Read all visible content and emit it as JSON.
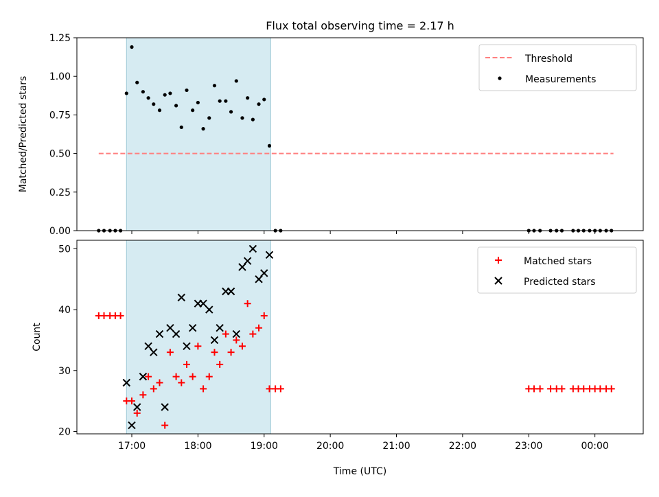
{
  "chart_data": [
    {
      "type": "scatter",
      "title": "Flux total observing time = 2.17 h",
      "xlabel": "",
      "ylabel": "Matched/Predicted stars",
      "xlim_hours": [
        16.17,
        24.73
      ],
      "ylim": [
        0,
        1.25
      ],
      "yticks": [
        0.0,
        0.25,
        0.5,
        0.75,
        1.0,
        1.25
      ],
      "ytick_labels": [
        "0.00",
        "0.25",
        "0.50",
        "0.75",
        "1.00",
        "1.25"
      ],
      "shaded_span_hours": [
        16.92,
        19.1
      ],
      "legend": {
        "position": "top-right",
        "entries": [
          "Threshold",
          "Measurements"
        ]
      },
      "threshold": {
        "name": "Threshold",
        "x_hours": [
          16.5,
          24.28
        ],
        "y": 0.5,
        "color": "#ff7f7f"
      },
      "series": [
        {
          "name": "Measurements",
          "color": "#000000",
          "x_hours": [
            16.5,
            16.58,
            16.67,
            16.75,
            16.83,
            16.92,
            17.0,
            17.08,
            17.17,
            17.25,
            17.33,
            17.42,
            17.5,
            17.58,
            17.67,
            17.75,
            17.83,
            17.92,
            18.0,
            18.08,
            18.17,
            18.25,
            18.33,
            18.42,
            18.5,
            18.58,
            18.67,
            18.75,
            18.83,
            18.92,
            19.0,
            19.08,
            19.17,
            19.25,
            23.0,
            23.08,
            23.17,
            23.33,
            23.42,
            23.5,
            23.67,
            23.75,
            23.83,
            23.92,
            24.0,
            24.08,
            24.17,
            24.25
          ],
          "y": [
            0,
            0,
            0,
            0,
            0,
            0.89,
            1.19,
            0.96,
            0.9,
            0.86,
            0.82,
            0.78,
            0.88,
            0.89,
            0.81,
            0.67,
            0.91,
            0.78,
            0.83,
            0.66,
            0.73,
            0.94,
            0.84,
            0.84,
            0.77,
            0.97,
            0.73,
            0.86,
            0.72,
            0.82,
            0.85,
            0.55,
            0,
            0,
            0,
            0,
            0,
            0,
            0,
            0,
            0,
            0,
            0,
            0,
            0,
            0,
            0,
            0
          ]
        }
      ]
    },
    {
      "type": "scatter",
      "title": "",
      "xlabel": "Time (UTC)",
      "ylabel": "Count",
      "xlim_hours": [
        16.17,
        24.73
      ],
      "ylim": [
        19.6,
        51.4
      ],
      "yticks": [
        20,
        30,
        40,
        50
      ],
      "ytick_labels": [
        "20",
        "30",
        "40",
        "50"
      ],
      "xticks_hours": [
        17,
        18,
        19,
        20,
        21,
        22,
        23,
        24
      ],
      "xtick_labels": [
        "17:00",
        "18:00",
        "19:00",
        "20:00",
        "21:00",
        "22:00",
        "23:00",
        "00:00"
      ],
      "shaded_span_hours": [
        16.92,
        19.1
      ],
      "legend": {
        "position": "top-right",
        "entries": [
          "Matched stars",
          "Predicted stars"
        ]
      },
      "series": [
        {
          "name": "Matched stars",
          "marker": "+",
          "color": "#ff0000",
          "x_hours": [
            16.5,
            16.58,
            16.67,
            16.75,
            16.83,
            16.92,
            17.0,
            17.08,
            17.17,
            17.25,
            17.33,
            17.42,
            17.5,
            17.58,
            17.67,
            17.75,
            17.83,
            17.92,
            18.0,
            18.08,
            18.17,
            18.25,
            18.33,
            18.42,
            18.5,
            18.58,
            18.67,
            18.75,
            18.83,
            18.92,
            19.0,
            19.08,
            19.17,
            19.25,
            23.0,
            23.08,
            23.17,
            23.33,
            23.42,
            23.5,
            23.67,
            23.75,
            23.83,
            23.92,
            24.0,
            24.08,
            24.17,
            24.25
          ],
          "y": [
            39,
            39,
            39,
            39,
            39,
            25,
            25,
            23,
            26,
            29,
            27,
            28,
            21,
            33,
            29,
            28,
            31,
            29,
            34,
            27,
            29,
            33,
            31,
            36,
            33,
            35,
            34,
            41,
            36,
            37,
            39,
            27,
            27,
            27,
            27,
            27,
            27,
            27,
            27,
            27,
            27,
            27,
            27,
            27,
            27,
            27,
            27,
            27
          ]
        },
        {
          "name": "Predicted stars",
          "marker": "x",
          "color": "#000000",
          "x_hours": [
            16.92,
            17.0,
            17.08,
            17.17,
            17.25,
            17.33,
            17.42,
            17.5,
            17.58,
            17.67,
            17.75,
            17.83,
            17.92,
            18.0,
            18.08,
            18.17,
            18.25,
            18.33,
            18.42,
            18.5,
            18.58,
            18.67,
            18.75,
            18.83,
            18.92,
            19.0,
            19.08
          ],
          "y": [
            28,
            21,
            24,
            29,
            34,
            33,
            36,
            24,
            37,
            36,
            42,
            34,
            37,
            41,
            41,
            40,
            35,
            37,
            43,
            43,
            36,
            47,
            48,
            50,
            45,
            46,
            49
          ]
        }
      ]
    }
  ]
}
